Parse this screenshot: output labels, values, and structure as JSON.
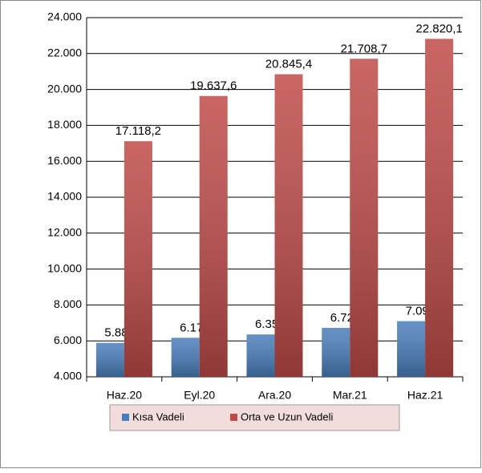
{
  "chart_data": {
    "type": "bar",
    "categories": [
      "Haz.20",
      "Eyl.20",
      "Ara.20",
      "Mar.21",
      "Haz.21"
    ],
    "series": [
      {
        "name": "Kısa Vadeli",
        "color": "#4a7ebb",
        "values": [
          5888.5,
          6172.6,
          6357.0,
          6726.7,
          7099.1
        ],
        "value_labels": [
          "5.888,5",
          "6.172,6",
          "6.357,0",
          "6.726,7",
          "7.099,1"
        ]
      },
      {
        "name": "Orta ve Uzun Vadeli",
        "color": "#be4b48",
        "values": [
          17118.2,
          19637.6,
          20845.4,
          21708.7,
          22820.1
        ],
        "value_labels": [
          "17.118,2",
          "19.637,6",
          "20.845,4",
          "21.708,7",
          "22.820,1"
        ]
      }
    ],
    "ylim": [
      4000,
      24000
    ],
    "yticks": [
      {
        "value": 4000,
        "label": "4.000"
      },
      {
        "value": 6000,
        "label": "6.000"
      },
      {
        "value": 8000,
        "label": "8.000"
      },
      {
        "value": 10000,
        "label": "10.000"
      },
      {
        "value": 12000,
        "label": "12.000"
      },
      {
        "value": 14000,
        "label": "14.000"
      },
      {
        "value": 16000,
        "label": "16.000"
      },
      {
        "value": 18000,
        "label": "18.000"
      },
      {
        "value": 20000,
        "label": "20.000"
      },
      {
        "value": 22000,
        "label": "22.000"
      },
      {
        "value": 24000,
        "label": "24.000"
      }
    ],
    "grid": true,
    "legend": "bottom"
  }
}
